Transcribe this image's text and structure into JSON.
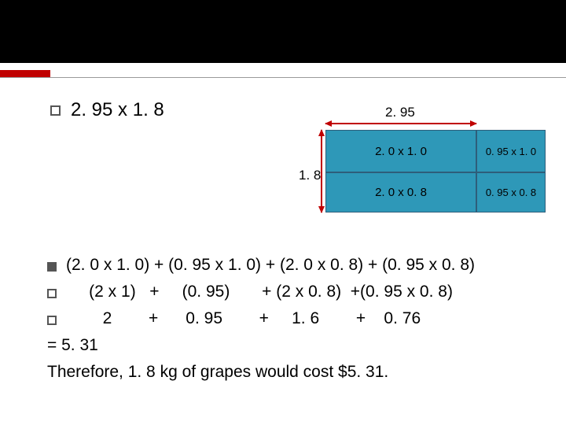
{
  "colors": {
    "accent_red": "#c00000",
    "gray_line": "#9a9a9a",
    "cell_fill": "#2e98b8",
    "cell_border": "#2e5e7a",
    "arrow_red": "#c00000"
  },
  "title": "2. 95 x 1. 8",
  "width_label": "2. 95",
  "height_label": "1. 8",
  "area": {
    "w1": 192,
    "w2": 88,
    "h1": 54,
    "h2": 51,
    "cells": [
      {
        "label": "2. 0 x 1. 0"
      },
      {
        "label": "0. 95 x 1. 0"
      },
      {
        "label": "2. 0 x 0. 8"
      },
      {
        "label": "0. 95 x 0. 8"
      }
    ]
  },
  "calc": {
    "line1": "(2. 0 x 1. 0) + (0. 95 x 1. 0) + (2. 0 x 0. 8) + (0. 95 x 0. 8)",
    "line2": "     (2 x 1)   +     (0. 95)       + (2 x 0. 8)  +(0. 95 x 0. 8)",
    "line3": "        2        +      0. 95        +     1. 6        +    0. 76",
    "line4": "= 5. 31",
    "line5": "Therefore, 1. 8 kg of grapes would cost $5. 31."
  }
}
